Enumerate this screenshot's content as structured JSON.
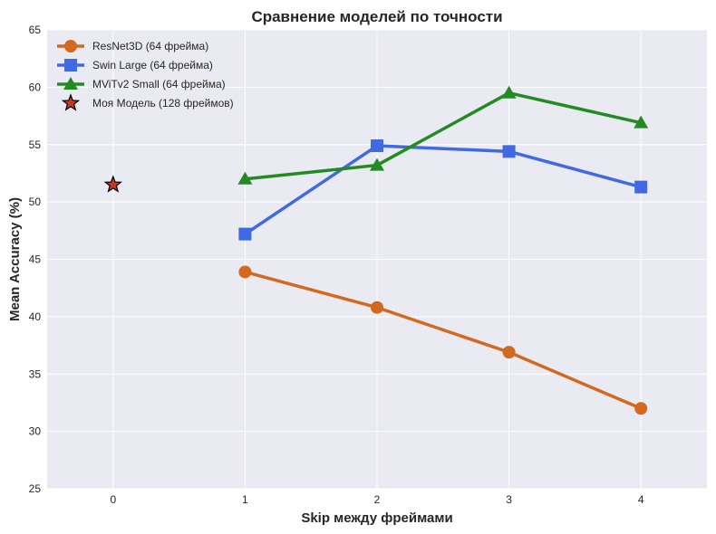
{
  "chart_data": {
    "type": "line",
    "title": "Сравнение моделей по точности",
    "xlabel": "Skip между фреймами",
    "ylabel": "Mean Accuracy (%)",
    "xlim": [
      -0.5,
      4.5
    ],
    "ylim": [
      25,
      65
    ],
    "xticks": [
      0,
      1,
      2,
      3,
      4
    ],
    "yticks": [
      25,
      30,
      35,
      40,
      45,
      50,
      55,
      60,
      65
    ],
    "grid": true,
    "legend_position": "top-left",
    "background_color": "#eaeaf2",
    "series": [
      {
        "name": "ResNet3D (64 фрейма)",
        "marker": "circle",
        "color": "#d2691e",
        "x": [
          1,
          2,
          3,
          4
        ],
        "y": [
          43.9,
          40.8,
          36.9,
          32.0
        ]
      },
      {
        "name": "Swin Large (64 фрейма)",
        "marker": "square",
        "color": "#4169e1",
        "x": [
          1,
          2,
          3,
          4
        ],
        "y": [
          47.2,
          54.9,
          54.4,
          51.3
        ]
      },
      {
        "name": "MViTv2 Small (64 фрейма)",
        "marker": "triangle",
        "color": "#228b22",
        "x": [
          1,
          2,
          3,
          4
        ],
        "y": [
          52.0,
          53.2,
          59.5,
          56.9
        ]
      },
      {
        "name": "Моя Модель (128 фреймов)",
        "marker": "star",
        "color": "#c0392b",
        "x": [
          0
        ],
        "y": [
          51.5
        ]
      }
    ]
  }
}
